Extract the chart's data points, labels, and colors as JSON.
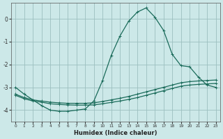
{
  "xlabel": "Humidex (Indice chaleur)",
  "xlim": [
    -0.5,
    23.5
  ],
  "ylim": [
    -4.5,
    0.7
  ],
  "yticks": [
    -4,
    -3,
    -2,
    -1,
    0
  ],
  "xticks": [
    0,
    1,
    2,
    3,
    4,
    5,
    6,
    7,
    8,
    9,
    10,
    11,
    12,
    13,
    14,
    15,
    16,
    17,
    18,
    19,
    20,
    21,
    22,
    23
  ],
  "bg_color": "#cce8e8",
  "grid_color": "#9bbfbf",
  "line_color": "#1a6b5a",
  "line1_x": [
    0,
    1,
    2,
    3,
    4,
    5,
    6,
    7,
    8,
    9,
    10,
    11,
    12,
    13,
    14,
    15,
    16,
    17,
    18,
    19,
    20,
    21,
    22,
    23
  ],
  "line1_y": [
    -3.0,
    -3.3,
    -3.55,
    -3.8,
    -4.0,
    -4.05,
    -4.05,
    -4.0,
    -3.95,
    -3.6,
    -2.7,
    -1.6,
    -0.75,
    -0.1,
    0.3,
    0.48,
    0.08,
    -0.5,
    -1.55,
    -2.05,
    -2.1,
    -2.55,
    -2.9,
    -3.0
  ],
  "line2_x": [
    0,
    1,
    2,
    3,
    4,
    5,
    6,
    7,
    8,
    9,
    10,
    11,
    12,
    13,
    14,
    15,
    16,
    17,
    18,
    19,
    20,
    21,
    22,
    23
  ],
  "line2_y": [
    -3.3,
    -3.45,
    -3.55,
    -3.6,
    -3.65,
    -3.68,
    -3.7,
    -3.7,
    -3.7,
    -3.68,
    -3.62,
    -3.55,
    -3.48,
    -3.4,
    -3.3,
    -3.2,
    -3.1,
    -3.0,
    -2.9,
    -2.8,
    -2.75,
    -2.72,
    -2.7,
    -2.68
  ],
  "line3_x": [
    0,
    1,
    2,
    3,
    4,
    5,
    6,
    7,
    8,
    9,
    10,
    11,
    12,
    13,
    14,
    15,
    16,
    17,
    18,
    19,
    20,
    21,
    22,
    23
  ],
  "line3_y": [
    -3.35,
    -3.5,
    -3.6,
    -3.65,
    -3.72,
    -3.75,
    -3.77,
    -3.78,
    -3.78,
    -3.77,
    -3.72,
    -3.66,
    -3.6,
    -3.53,
    -3.45,
    -3.35,
    -3.25,
    -3.15,
    -3.05,
    -2.95,
    -2.9,
    -2.87,
    -2.85,
    -2.83
  ]
}
